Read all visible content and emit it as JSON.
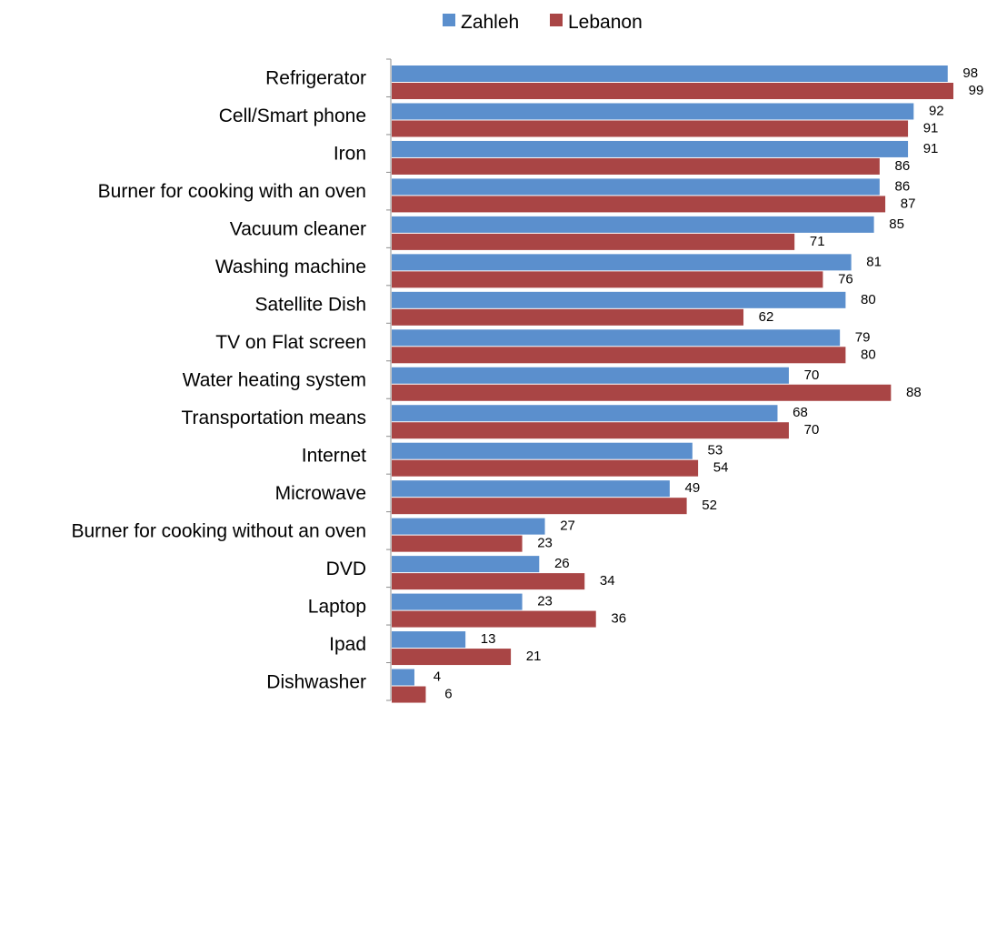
{
  "chart_data": {
    "type": "bar",
    "orientation": "horizontal",
    "categories": [
      "Refrigerator",
      "Cell/Smart phone",
      "Iron",
      "Burner for cooking with an oven",
      "Vacuum cleaner",
      "Washing machine",
      "Satellite Dish",
      "TV on Flat screen",
      "Water heating system",
      "Transportation means",
      "Internet",
      "Microwave",
      "Burner for cooking without an oven",
      "DVD",
      "Laptop",
      "Ipad",
      "Dishwasher"
    ],
    "series": [
      {
        "name": "Zahleh",
        "color": "#5B8FCD",
        "values": [
          98,
          92,
          91,
          86,
          85,
          81,
          80,
          79,
          70,
          68,
          53,
          49,
          27,
          26,
          23,
          13,
          4
        ]
      },
      {
        "name": "Lebanon",
        "color": "#A94545",
        "values": [
          99,
          91,
          86,
          87,
          71,
          76,
          62,
          80,
          88,
          70,
          54,
          52,
          23,
          34,
          36,
          21,
          6
        ]
      }
    ],
    "xlim": [
      0,
      100
    ],
    "legend": "top-center",
    "grid": false,
    "data_labels": true,
    "title": "",
    "xlabel": "",
    "ylabel": ""
  }
}
